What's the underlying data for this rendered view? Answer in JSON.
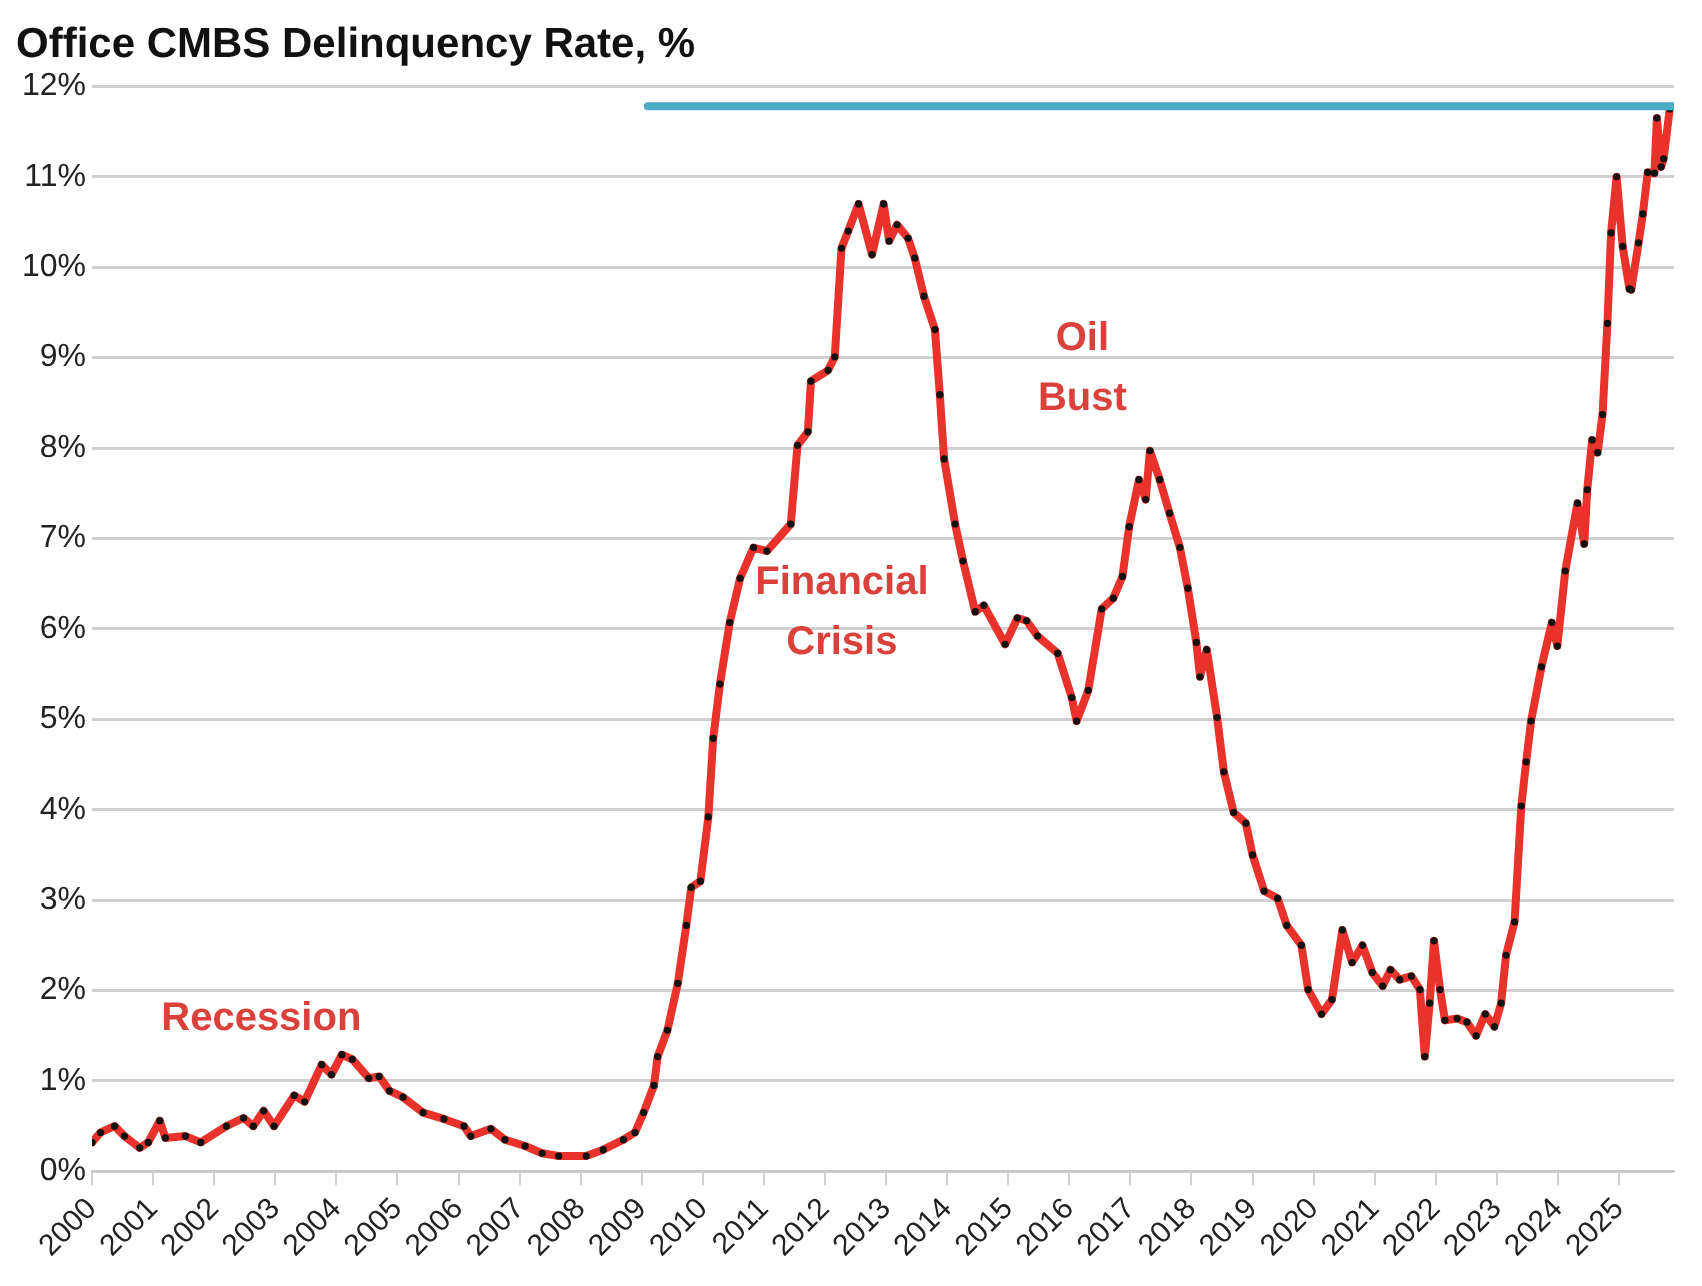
{
  "chart_data": {
    "type": "line",
    "title": "Office CMBS Delinquency Rate, %",
    "xlim": [
      2000,
      2025.9
    ],
    "xticks": [
      2000,
      2001,
      2002,
      2003,
      2004,
      2005,
      2006,
      2007,
      2008,
      2009,
      2010,
      2011,
      2012,
      2013,
      2014,
      2015,
      2016,
      2017,
      2018,
      2019,
      2020,
      2021,
      2022,
      2023,
      2024,
      2025
    ],
    "ylim": [
      0,
      12
    ],
    "yticks": [
      {
        "value": 0,
        "label": "0%"
      },
      {
        "value": 1,
        "label": "1%"
      },
      {
        "value": 2,
        "label": "2%"
      },
      {
        "value": 3,
        "label": "3%"
      },
      {
        "value": 4,
        "label": "4%"
      },
      {
        "value": 5,
        "label": "5%"
      },
      {
        "value": 6,
        "label": "6%"
      },
      {
        "value": 7,
        "label": "7%"
      },
      {
        "value": 8,
        "label": "8%"
      },
      {
        "value": 9,
        "label": "9%"
      },
      {
        "value": 10,
        "label": "10%"
      },
      {
        "value": 11,
        "label": "11%"
      },
      {
        "value": 12,
        "label": "12%"
      }
    ],
    "grid": "y",
    "legend": false,
    "marker": "circle",
    "line_style": "solid",
    "series": [
      {
        "color": "#e8322b",
        "x": [
          2000.0,
          2000.14,
          2000.37,
          2000.53,
          2000.78,
          2000.92,
          2001.11,
          2001.2,
          2001.53,
          2001.78,
          2002.2,
          2002.48,
          2002.64,
          2002.81,
          2002.98,
          2003.31,
          2003.48,
          2003.76,
          2003.92,
          2004.09,
          2004.26,
          2004.53,
          2004.7,
          2004.87,
          2005.09,
          2005.42,
          2005.76,
          2006.09,
          2006.2,
          2006.53,
          2006.76,
          2007.09,
          2007.37,
          2007.64,
          2008.09,
          2008.37,
          2008.7,
          2008.89,
          2009.03,
          2009.2,
          2009.26,
          2009.42,
          2009.59,
          2009.73,
          2009.81,
          2009.96,
          2010.09,
          2010.17,
          2010.28,
          2010.44,
          2010.61,
          2010.83,
          2011.05,
          2011.44,
          2011.55,
          2011.72,
          2011.77,
          2012.05,
          2012.16,
          2012.27,
          2012.38,
          2012.55,
          2012.77,
          2012.96,
          2013.05,
          2013.18,
          2013.36,
          2013.47,
          2013.62,
          2013.8,
          2013.88,
          2013.95,
          2014.13,
          2014.26,
          2014.46,
          2014.6,
          2014.95,
          2015.15,
          2015.3,
          2015.48,
          2015.81,
          2016.04,
          2016.12,
          2016.31,
          2016.53,
          2016.72,
          2016.87,
          2016.98,
          2017.14,
          2017.25,
          2017.32,
          2017.48,
          2017.64,
          2017.81,
          2017.94,
          2018.08,
          2018.14,
          2018.25,
          2018.42,
          2018.53,
          2018.69,
          2018.89,
          2019.0,
          2019.19,
          2019.41,
          2019.56,
          2019.8,
          2019.91,
          2020.13,
          2020.3,
          2020.47,
          2020.63,
          2020.8,
          2020.96,
          2021.13,
          2021.26,
          2021.41,
          2021.6,
          2021.74,
          2021.82,
          2021.9,
          2021.97,
          2022.07,
          2022.15,
          2022.35,
          2022.51,
          2022.66,
          2022.81,
          2022.96,
          2023.07,
          2023.15,
          2023.29,
          2023.4,
          2023.48,
          2023.56,
          2023.73,
          2023.9,
          2023.99,
          2024.12,
          2024.32,
          2024.43,
          2024.48,
          2024.56,
          2024.65,
          2024.73,
          2024.81,
          2024.87,
          2024.96,
          2025.06,
          2025.17,
          2025.2,
          2025.32,
          2025.39,
          2025.47,
          2025.58,
          2025.62,
          2025.69,
          2025.73,
          2025.83
        ],
        "values": [
          0.32,
          0.43,
          0.5,
          0.39,
          0.26,
          0.32,
          0.56,
          0.37,
          0.39,
          0.32,
          0.5,
          0.59,
          0.5,
          0.67,
          0.5,
          0.84,
          0.77,
          1.18,
          1.07,
          1.29,
          1.24,
          1.03,
          1.05,
          0.89,
          0.82,
          0.65,
          0.58,
          0.5,
          0.39,
          0.47,
          0.35,
          0.28,
          0.2,
          0.17,
          0.17,
          0.24,
          0.35,
          0.43,
          0.65,
          0.95,
          1.27,
          1.56,
          2.08,
          2.72,
          3.14,
          3.21,
          3.92,
          4.79,
          5.39,
          6.07,
          6.56,
          6.9,
          6.86,
          7.16,
          8.03,
          8.18,
          8.74,
          8.86,
          9.01,
          10.21,
          10.4,
          10.7,
          10.14,
          10.7,
          10.29,
          10.47,
          10.32,
          10.1,
          9.68,
          9.31,
          8.59,
          7.88,
          7.16,
          6.75,
          6.19,
          6.26,
          5.83,
          6.12,
          6.09,
          5.92,
          5.73,
          5.24,
          4.98,
          5.32,
          6.22,
          6.34,
          6.58,
          7.13,
          7.65,
          7.43,
          7.97,
          7.65,
          7.28,
          6.9,
          6.45,
          5.85,
          5.47,
          5.77,
          5.02,
          4.42,
          3.97,
          3.85,
          3.5,
          3.1,
          3.02,
          2.72,
          2.5,
          2.01,
          1.74,
          1.9,
          2.67,
          2.31,
          2.5,
          2.2,
          2.05,
          2.23,
          2.12,
          2.16,
          2.01,
          1.27,
          1.86,
          2.55,
          2.01,
          1.67,
          1.69,
          1.65,
          1.5,
          1.74,
          1.6,
          1.86,
          2.39,
          2.76,
          4.04,
          4.53,
          4.98,
          5.58,
          6.07,
          5.81,
          6.64,
          7.39,
          6.94,
          7.54,
          8.09,
          7.95,
          8.37,
          9.38,
          10.38,
          11.0,
          10.23,
          9.76,
          9.75,
          10.27,
          10.59,
          11.05,
          11.04,
          11.65,
          11.11,
          11.2,
          11.75
        ]
      },
      {
        "color": "#4bacc6",
        "marker": "none",
        "x": [
          2009.1,
          2025.9
        ],
        "values": [
          11.78,
          11.78
        ]
      }
    ],
    "annotations": [
      "Recession",
      "Financial\nCrisis",
      "Oil\nBust"
    ]
  }
}
